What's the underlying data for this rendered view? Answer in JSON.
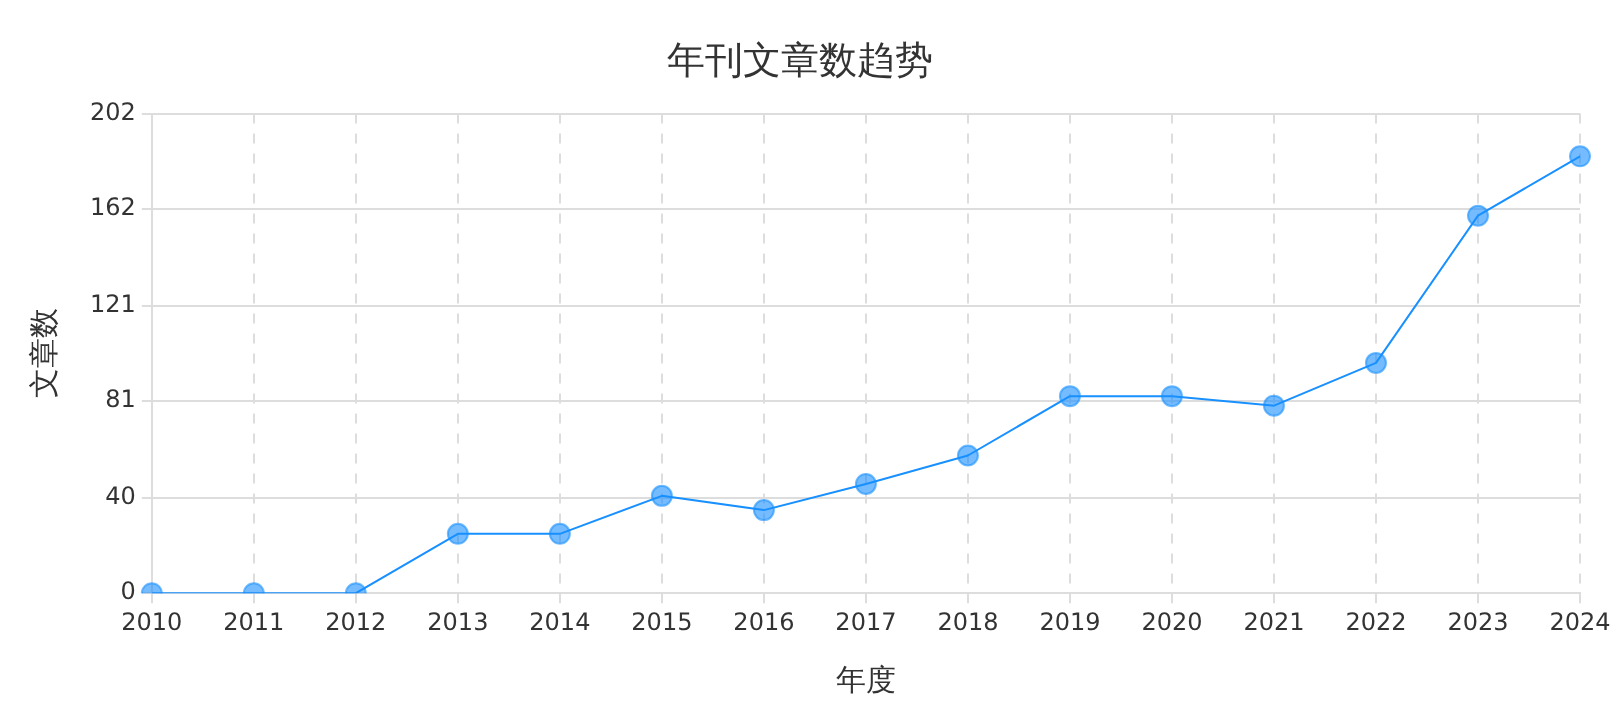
{
  "chart_data": {
    "type": "line",
    "title": "年刊文章数趋势",
    "xlabel": "年度",
    "ylabel": "文章数",
    "categories": [
      "2010",
      "2011",
      "2012",
      "2013",
      "2014",
      "2015",
      "2016",
      "2017",
      "2018",
      "2019",
      "2020",
      "2021",
      "2022",
      "2023",
      "2024"
    ],
    "series": [
      {
        "color": "#1890ff",
        "values": [
          0,
          0,
          0,
          25,
          25,
          41,
          35,
          46,
          58,
          83,
          83,
          79,
          97,
          159,
          184
        ]
      }
    ],
    "ylim": [
      0,
      202
    ],
    "yticks": [
      0,
      40,
      81,
      121,
      162,
      202
    ],
    "grid": true,
    "legend": false,
    "marker": "circle",
    "line_style": "solid"
  }
}
